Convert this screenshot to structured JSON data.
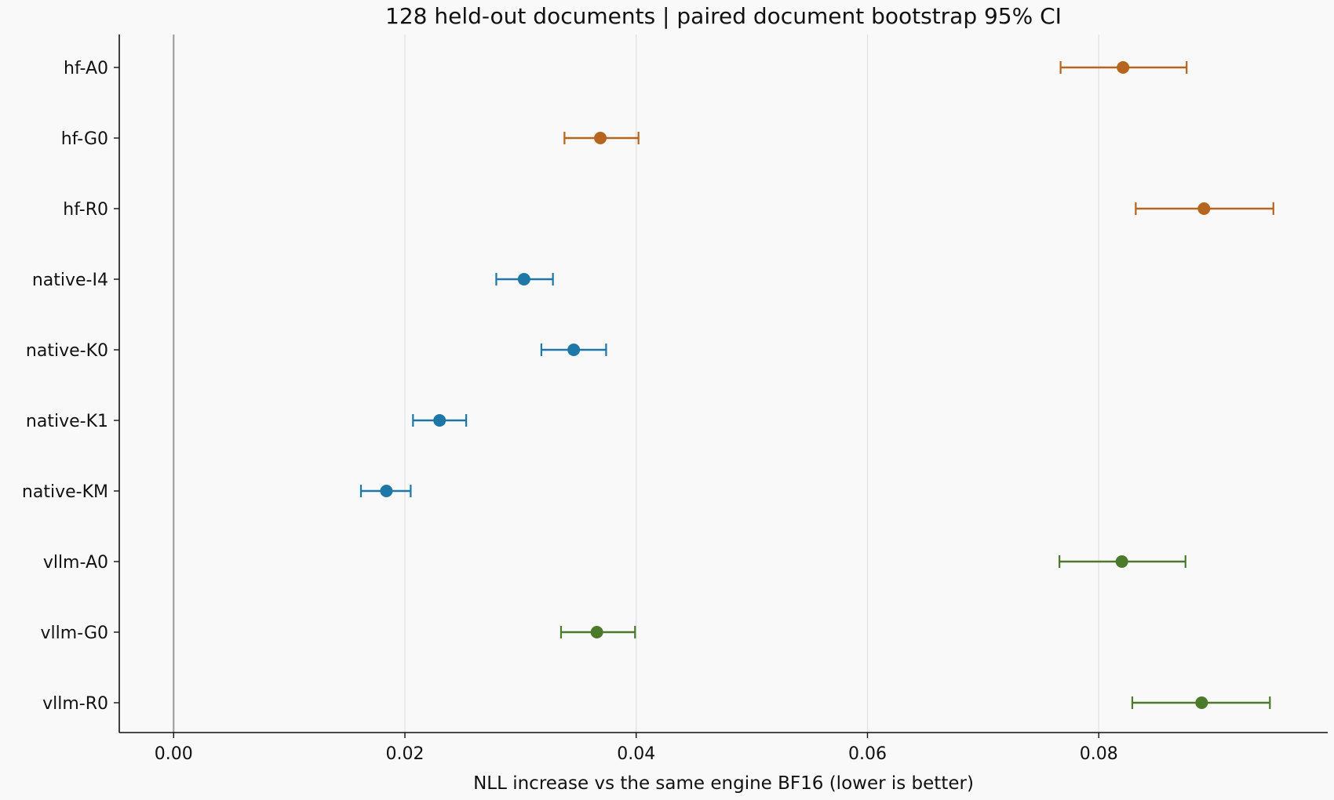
{
  "chart_data": {
    "type": "scatter",
    "title": "128 held-out documents | paired document bootstrap 95% CI",
    "xlabel": "NLL increase vs the same engine BF16 (lower is better)",
    "ylabel": "",
    "xlim": [
      -0.0047,
      0.0998
    ],
    "xticks": [
      0.0,
      0.02,
      0.04,
      0.06,
      0.08
    ],
    "xtick_labels": [
      "0.00",
      "0.02",
      "0.04",
      "0.06",
      "0.08"
    ],
    "grid": "vertical",
    "reference_line_x": 0.0,
    "colors": {
      "hf": "#b5651d",
      "native": "#1f77a8",
      "vllm": "#4a7a2a"
    },
    "points": [
      {
        "label": "hf-A0",
        "group": "hf",
        "value": 0.0821,
        "ci_low": 0.0767,
        "ci_high": 0.0876
      },
      {
        "label": "hf-G0",
        "group": "hf",
        "value": 0.0369,
        "ci_low": 0.0338,
        "ci_high": 0.0402
      },
      {
        "label": "hf-R0",
        "group": "hf",
        "value": 0.0891,
        "ci_low": 0.0832,
        "ci_high": 0.0951
      },
      {
        "label": "native-I4",
        "group": "native",
        "value": 0.0303,
        "ci_low": 0.0279,
        "ci_high": 0.0328
      },
      {
        "label": "native-K0",
        "group": "native",
        "value": 0.0346,
        "ci_low": 0.0318,
        "ci_high": 0.0374
      },
      {
        "label": "native-K1",
        "group": "native",
        "value": 0.023,
        "ci_low": 0.0207,
        "ci_high": 0.0253
      },
      {
        "label": "native-KM",
        "group": "native",
        "value": 0.0184,
        "ci_low": 0.0162,
        "ci_high": 0.0205
      },
      {
        "label": "vllm-A0",
        "group": "vllm",
        "value": 0.082,
        "ci_low": 0.0766,
        "ci_high": 0.0875
      },
      {
        "label": "vllm-G0",
        "group": "vllm",
        "value": 0.0366,
        "ci_low": 0.0335,
        "ci_high": 0.0399
      },
      {
        "label": "vllm-R0",
        "group": "vllm",
        "value": 0.0889,
        "ci_low": 0.0829,
        "ci_high": 0.0948
      }
    ]
  }
}
